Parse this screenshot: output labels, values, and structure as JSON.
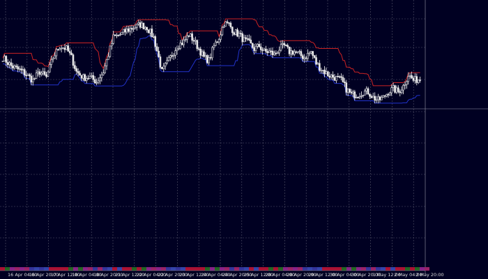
{
  "chart_data": {
    "type": "candlestick",
    "x_tick_labels": [
      "16 Apr 04:00",
      "16 Apr 20:00",
      "17 Apr 12:00",
      "18 Apr 04:00",
      "18 Apr 20:00",
      "21 Apr 12:00",
      "22 Apr 04:00",
      "22 Apr 20:00",
      "23 Apr 12:00",
      "24 Apr 04:00",
      "24 Apr 20:00",
      "25 Apr 12:00",
      "28 Apr 04:00",
      "28 Apr 20:00",
      "29 Apr 12:00",
      "30 Apr 04:00",
      "30 Apr 20:00",
      "1 May 12:00",
      "2 May 04:00",
      "2 May 20:00"
    ],
    "bars_count": 250,
    "price_path": [
      [
        0,
        0.72
      ],
      [
        5,
        0.66
      ],
      [
        12,
        0.62
      ],
      [
        18,
        0.56
      ],
      [
        22,
        0.62
      ],
      [
        26,
        0.58
      ],
      [
        30,
        0.72
      ],
      [
        34,
        0.8
      ],
      [
        38,
        0.78
      ],
      [
        41,
        0.72
      ],
      [
        44,
        0.62
      ],
      [
        48,
        0.58
      ],
      [
        52,
        0.58
      ],
      [
        56,
        0.55
      ],
      [
        60,
        0.62
      ],
      [
        63,
        0.74
      ],
      [
        66,
        0.86
      ],
      [
        70,
        0.88
      ],
      [
        74,
        0.91
      ],
      [
        78,
        0.93
      ],
      [
        82,
        0.95
      ],
      [
        86,
        0.93
      ],
      [
        90,
        0.86
      ],
      [
        93,
        0.72
      ],
      [
        95,
        0.62
      ],
      [
        97,
        0.66
      ],
      [
        100,
        0.72
      ],
      [
        104,
        0.8
      ],
      [
        108,
        0.83
      ],
      [
        111,
        0.88
      ],
      [
        114,
        0.84
      ],
      [
        117,
        0.78
      ],
      [
        120,
        0.72
      ],
      [
        123,
        0.7
      ],
      [
        126,
        0.8
      ],
      [
        129,
        0.86
      ],
      [
        132,
        0.96
      ],
      [
        135,
        0.95
      ],
      [
        138,
        0.9
      ],
      [
        141,
        0.88
      ],
      [
        144,
        0.84
      ],
      [
        147,
        0.82
      ],
      [
        150,
        0.78
      ],
      [
        153,
        0.8
      ],
      [
        156,
        0.76
      ],
      [
        159,
        0.76
      ],
      [
        162,
        0.74
      ],
      [
        165,
        0.78
      ],
      [
        168,
        0.8
      ],
      [
        171,
        0.76
      ],
      [
        174,
        0.76
      ],
      [
        177,
        0.74
      ],
      [
        180,
        0.72
      ],
      [
        184,
        0.76
      ],
      [
        187,
        0.68
      ],
      [
        190,
        0.64
      ],
      [
        194,
        0.6
      ],
      [
        198,
        0.58
      ],
      [
        202,
        0.56
      ],
      [
        205,
        0.5
      ],
      [
        208,
        0.46
      ],
      [
        212,
        0.46
      ],
      [
        215,
        0.48
      ],
      [
        218,
        0.48
      ],
      [
        221,
        0.44
      ],
      [
        224,
        0.42
      ],
      [
        227,
        0.44
      ],
      [
        230,
        0.48
      ],
      [
        233,
        0.5
      ],
      [
        236,
        0.48
      ],
      [
        239,
        0.52
      ],
      [
        242,
        0.6
      ],
      [
        245,
        0.56
      ],
      [
        249,
        0.57
      ]
    ],
    "bollinger_upper_color": "#cc2222",
    "bollinger_lower_color": "#2233cc",
    "candle_color": "#e8e8e8",
    "grid": true,
    "legend": "none"
  }
}
